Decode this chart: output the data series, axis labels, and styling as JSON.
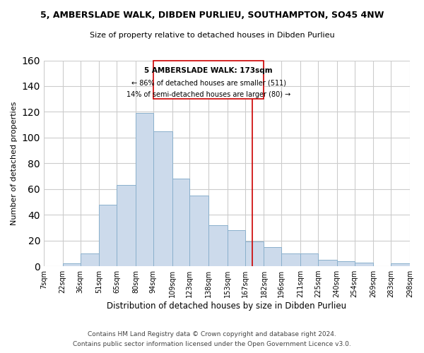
{
  "title": "5, AMBERSLADE WALK, DIBDEN PURLIEU, SOUTHAMPTON, SO45 4NW",
  "subtitle": "Size of property relative to detached houses in Dibden Purlieu",
  "xlabel": "Distribution of detached houses by size in Dibden Purlieu",
  "ylabel": "Number of detached properties",
  "bar_labels": [
    "7sqm",
    "22sqm",
    "36sqm",
    "51sqm",
    "65sqm",
    "80sqm",
    "94sqm",
    "109sqm",
    "123sqm",
    "138sqm",
    "153sqm",
    "167sqm",
    "182sqm",
    "196sqm",
    "211sqm",
    "225sqm",
    "240sqm",
    "254sqm",
    "269sqm",
    "283sqm",
    "298sqm"
  ],
  "bar_values": [
    0,
    2,
    10,
    48,
    63,
    119,
    105,
    68,
    55,
    32,
    28,
    19,
    15,
    10,
    10,
    5,
    4,
    3,
    0,
    2
  ],
  "bin_edges": [
    7,
    22,
    36,
    51,
    65,
    80,
    94,
    109,
    123,
    138,
    153,
    167,
    182,
    196,
    211,
    225,
    240,
    254,
    269,
    283,
    298
  ],
  "bar_color": "#ccdaeb",
  "bar_edge_color": "#8ab0cc",
  "vline_x": 173,
  "vline_color": "#cc0000",
  "annotation_title": "5 AMBERSLADE WALK: 173sqm",
  "annotation_line1": "← 86% of detached houses are smaller (511)",
  "annotation_line2": "14% of semi-detached houses are larger (80) →",
  "annotation_box_color": "#ffffff",
  "annotation_box_edge": "#cc0000",
  "ylim": [
    0,
    160
  ],
  "yticks": [
    0,
    20,
    40,
    60,
    80,
    100,
    120,
    140,
    160
  ],
  "footer1": "Contains HM Land Registry data © Crown copyright and database right 2024.",
  "footer2": "Contains public sector information licensed under the Open Government Licence v3.0.",
  "background_color": "#ffffff",
  "grid_color": "#cccccc"
}
